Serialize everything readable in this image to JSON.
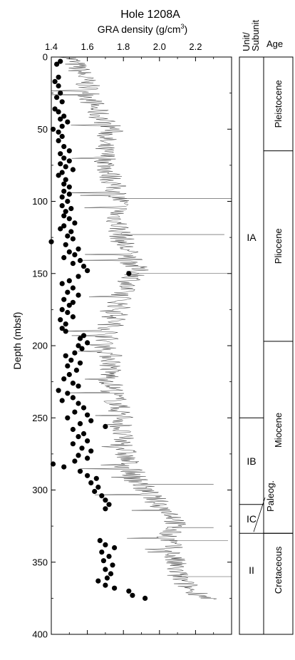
{
  "title": "Hole 1208A",
  "xaxis": {
    "label_main": "GRA density (g/cm",
    "label_sup": "3",
    "label_end": ")"
  },
  "yaxis": {
    "label": "Depth (mbsf)"
  },
  "headers": {
    "unit_line1": "Unit/",
    "unit_line2": "Subunit",
    "age": "Age"
  },
  "units": [
    {
      "label": "IA",
      "top": 0,
      "bottom": 250
    },
    {
      "label": "IB",
      "top": 250,
      "bottom": 310
    },
    {
      "label": "IC",
      "top": 310,
      "bottom": 330
    },
    {
      "label": "II",
      "top": 330,
      "bottom": 381
    }
  ],
  "ages": [
    {
      "label": "Pleistocene",
      "top": 0,
      "bottom": 65
    },
    {
      "label": "Pliocene",
      "top": 65,
      "bottom": 197
    },
    {
      "label": "Miocene",
      "top": 197,
      "bottom": 320
    },
    {
      "label": "Paleog.",
      "top": 320,
      "bottom": 330,
      "leader": true
    },
    {
      "label": "Cretaceous",
      "top": 330,
      "bottom": 381
    }
  ],
  "chart_data": {
    "type": "scatter",
    "title": "Hole 1208A",
    "xlabel": "GRA density (g/cm3)",
    "ylabel": "Depth (mbsf)",
    "xlim": [
      1.4,
      2.4
    ],
    "ylim": [
      0,
      400
    ],
    "y_inverted": true,
    "xticks": [
      1.4,
      1.6,
      1.8,
      2.0,
      2.2
    ],
    "yticks": [
      0,
      50,
      100,
      150,
      200,
      250,
      300,
      350,
      400
    ],
    "grid": false,
    "gra_trend": [
      {
        "d": 0,
        "x": 1.5
      },
      {
        "d": 10,
        "x": 1.56
      },
      {
        "d": 20,
        "x": 1.6
      },
      {
        "d": 30,
        "x": 1.62
      },
      {
        "d": 40,
        "x": 1.66
      },
      {
        "d": 50,
        "x": 1.74
      },
      {
        "d": 60,
        "x": 1.68
      },
      {
        "d": 70,
        "x": 1.7
      },
      {
        "d": 80,
        "x": 1.72
      },
      {
        "d": 90,
        "x": 1.75
      },
      {
        "d": 100,
        "x": 1.78
      },
      {
        "d": 110,
        "x": 1.76
      },
      {
        "d": 120,
        "x": 1.78
      },
      {
        "d": 130,
        "x": 1.8
      },
      {
        "d": 140,
        "x": 1.84
      },
      {
        "d": 150,
        "x": 1.88
      },
      {
        "d": 160,
        "x": 1.8
      },
      {
        "d": 170,
        "x": 1.78
      },
      {
        "d": 180,
        "x": 1.76
      },
      {
        "d": 190,
        "x": 1.72
      },
      {
        "d": 200,
        "x": 1.7
      },
      {
        "d": 210,
        "x": 1.74
      },
      {
        "d": 220,
        "x": 1.72
      },
      {
        "d": 230,
        "x": 1.74
      },
      {
        "d": 240,
        "x": 1.76
      },
      {
        "d": 250,
        "x": 1.8
      },
      {
        "d": 260,
        "x": 1.78
      },
      {
        "d": 270,
        "x": 1.8
      },
      {
        "d": 280,
        "x": 1.82
      },
      {
        "d": 290,
        "x": 1.86
      },
      {
        "d": 300,
        "x": 1.92
      },
      {
        "d": 310,
        "x": 2.0
      },
      {
        "d": 320,
        "x": 2.1
      },
      {
        "d": 330,
        "x": 2.05
      },
      {
        "d": 340,
        "x": 2.06
      },
      {
        "d": 350,
        "x": 2.08
      },
      {
        "d": 360,
        "x": 2.1
      },
      {
        "d": 370,
        "x": 2.18
      },
      {
        "d": 376,
        "x": 2.3
      }
    ],
    "gra_spikes": [
      {
        "d": 98,
        "x": 2.4
      },
      {
        "d": 123,
        "x": 2.36
      },
      {
        "d": 150,
        "x": 2.4
      },
      {
        "d": 296,
        "x": 2.3
      },
      {
        "d": 326,
        "x": 2.3
      },
      {
        "d": 335,
        "x": 2.38
      },
      {
        "d": 360,
        "x": 2.4
      }
    ],
    "discrete_points": [
      {
        "d": 3,
        "x": 1.45
      },
      {
        "d": 5,
        "x": 1.43
      },
      {
        "d": 14,
        "x": 1.44
      },
      {
        "d": 17,
        "x": 1.42
      },
      {
        "d": 20,
        "x": 1.44
      },
      {
        "d": 25,
        "x": 1.45
      },
      {
        "d": 28,
        "x": 1.43
      },
      {
        "d": 31,
        "x": 1.46
      },
      {
        "d": 36,
        "x": 1.42
      },
      {
        "d": 38,
        "x": 1.44
      },
      {
        "d": 41,
        "x": 1.47
      },
      {
        "d": 43,
        "x": 1.45
      },
      {
        "d": 45,
        "x": 1.49
      },
      {
        "d": 48,
        "x": 1.46
      },
      {
        "d": 50,
        "x": 1.41
      },
      {
        "d": 52,
        "x": 1.44
      },
      {
        "d": 55,
        "x": 1.46
      },
      {
        "d": 58,
        "x": 1.44
      },
      {
        "d": 62,
        "x": 1.47
      },
      {
        "d": 65,
        "x": 1.5
      },
      {
        "d": 67,
        "x": 1.45
      },
      {
        "d": 70,
        "x": 1.47
      },
      {
        "d": 72,
        "x": 1.5
      },
      {
        "d": 74,
        "x": 1.45
      },
      {
        "d": 76,
        "x": 1.48
      },
      {
        "d": 78,
        "x": 1.52
      },
      {
        "d": 80,
        "x": 1.46
      },
      {
        "d": 82,
        "x": 1.44
      },
      {
        "d": 85,
        "x": 1.48
      },
      {
        "d": 88,
        "x": 1.47
      },
      {
        "d": 90,
        "x": 1.5
      },
      {
        "d": 93,
        "x": 1.47
      },
      {
        "d": 95,
        "x": 1.5
      },
      {
        "d": 97,
        "x": 1.46
      },
      {
        "d": 100,
        "x": 1.49
      },
      {
        "d": 103,
        "x": 1.46
      },
      {
        "d": 105,
        "x": 1.51
      },
      {
        "d": 107,
        "x": 1.48
      },
      {
        "d": 110,
        "x": 1.47
      },
      {
        "d": 112,
        "x": 1.5
      },
      {
        "d": 115,
        "x": 1.53
      },
      {
        "d": 117,
        "x": 1.47
      },
      {
        "d": 119,
        "x": 1.45
      },
      {
        "d": 121,
        "x": 1.51
      },
      {
        "d": 124,
        "x": 1.49
      },
      {
        "d": 126,
        "x": 1.52
      },
      {
        "d": 128,
        "x": 1.4
      },
      {
        "d": 130,
        "x": 1.48
      },
      {
        "d": 133,
        "x": 1.55
      },
      {
        "d": 135,
        "x": 1.5
      },
      {
        "d": 137,
        "x": 1.53
      },
      {
        "d": 139,
        "x": 1.47
      },
      {
        "d": 141,
        "x": 1.56
      },
      {
        "d": 143,
        "x": 1.52
      },
      {
        "d": 145,
        "x": 1.58
      },
      {
        "d": 148,
        "x": 1.6
      },
      {
        "d": 150,
        "x": 1.83
      },
      {
        "d": 152,
        "x": 1.55
      },
      {
        "d": 155,
        "x": 1.5
      },
      {
        "d": 157,
        "x": 1.46
      },
      {
        "d": 160,
        "x": 1.52
      },
      {
        "d": 163,
        "x": 1.49
      },
      {
        "d": 165,
        "x": 1.55
      },
      {
        "d": 168,
        "x": 1.47
      },
      {
        "d": 170,
        "x": 1.52
      },
      {
        "d": 172,
        "x": 1.5
      },
      {
        "d": 175,
        "x": 1.46
      },
      {
        "d": 177,
        "x": 1.49
      },
      {
        "d": 180,
        "x": 1.52
      },
      {
        "d": 182,
        "x": 1.45
      },
      {
        "d": 185,
        "x": 1.48
      },
      {
        "d": 188,
        "x": 1.46
      },
      {
        "d": 190,
        "x": 1.48
      },
      {
        "d": 193,
        "x": 1.58
      },
      {
        "d": 195,
        "x": 1.56
      },
      {
        "d": 198,
        "x": 1.6
      },
      {
        "d": 200,
        "x": 1.55
      },
      {
        "d": 202,
        "x": 1.57
      },
      {
        "d": 205,
        "x": 1.53
      },
      {
        "d": 207,
        "x": 1.48
      },
      {
        "d": 210,
        "x": 1.51
      },
      {
        "d": 212,
        "x": 1.56
      },
      {
        "d": 214,
        "x": 1.49
      },
      {
        "d": 217,
        "x": 1.54
      },
      {
        "d": 220,
        "x": 1.5
      },
      {
        "d": 223,
        "x": 1.47
      },
      {
        "d": 226,
        "x": 1.52
      },
      {
        "d": 228,
        "x": 1.55
      },
      {
        "d": 231,
        "x": 1.44
      },
      {
        "d": 233,
        "x": 1.49
      },
      {
        "d": 236,
        "x": 1.52
      },
      {
        "d": 238,
        "x": 1.46
      },
      {
        "d": 240,
        "x": 1.55
      },
      {
        "d": 243,
        "x": 1.58
      },
      {
        "d": 246,
        "x": 1.53
      },
      {
        "d": 248,
        "x": 1.6
      },
      {
        "d": 250,
        "x": 1.49
      },
      {
        "d": 252,
        "x": 1.62
      },
      {
        "d": 254,
        "x": 1.56
      },
      {
        "d": 256,
        "x": 1.7
      },
      {
        "d": 258,
        "x": 1.52
      },
      {
        "d": 261,
        "x": 1.58
      },
      {
        "d": 263,
        "x": 1.55
      },
      {
        "d": 266,
        "x": 1.6
      },
      {
        "d": 268,
        "x": 1.52
      },
      {
        "d": 271,
        "x": 1.57
      },
      {
        "d": 273,
        "x": 1.62
      },
      {
        "d": 276,
        "x": 1.55
      },
      {
        "d": 278,
        "x": 1.6
      },
      {
        "d": 280,
        "x": 1.53
      },
      {
        "d": 282,
        "x": 1.41
      },
      {
        "d": 284,
        "x": 1.47
      },
      {
        "d": 287,
        "x": 1.56
      },
      {
        "d": 290,
        "x": 1.6
      },
      {
        "d": 292,
        "x": 1.65
      },
      {
        "d": 295,
        "x": 1.62
      },
      {
        "d": 298,
        "x": 1.66
      },
      {
        "d": 301,
        "x": 1.64
      },
      {
        "d": 304,
        "x": 1.68
      },
      {
        "d": 307,
        "x": 1.7
      },
      {
        "d": 310,
        "x": 1.72
      },
      {
        "d": 313,
        "x": 1.7
      },
      {
        "d": 335,
        "x": 1.67
      },
      {
        "d": 338,
        "x": 1.7
      },
      {
        "d": 340,
        "x": 1.75
      },
      {
        "d": 343,
        "x": 1.68
      },
      {
        "d": 346,
        "x": 1.72
      },
      {
        "d": 349,
        "x": 1.69
      },
      {
        "d": 352,
        "x": 1.74
      },
      {
        "d": 355,
        "x": 1.7
      },
      {
        "d": 358,
        "x": 1.73
      },
      {
        "d": 361,
        "x": 1.71
      },
      {
        "d": 363,
        "x": 1.66
      },
      {
        "d": 366,
        "x": 1.7
      },
      {
        "d": 368,
        "x": 1.75
      },
      {
        "d": 370,
        "x": 1.83
      },
      {
        "d": 373,
        "x": 1.85
      },
      {
        "d": 375,
        "x": 1.92
      }
    ]
  }
}
